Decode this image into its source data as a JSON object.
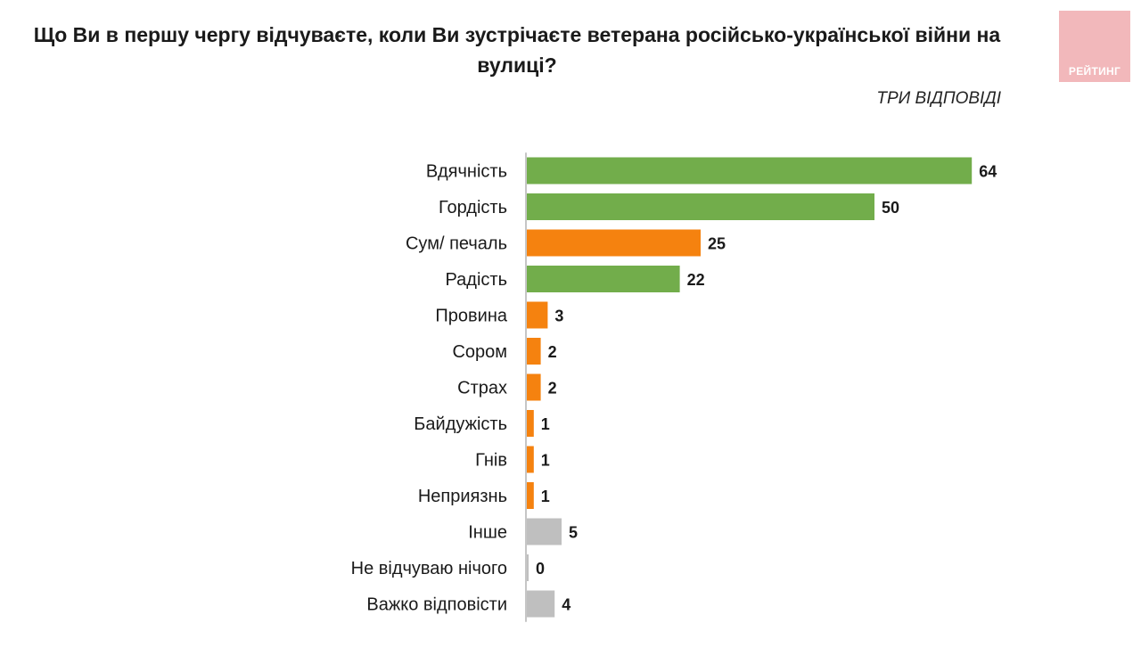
{
  "logo": {
    "text": "РЕЙТИНГ",
    "color": "#f2b8bb"
  },
  "chart_data": {
    "type": "bar",
    "orientation": "horizontal",
    "title": "Що Ви в першу чергу відчуваєте, коли Ви зустрічаєте ветерана російсько-української війни на вулиці?",
    "subtitle": "ТРИ ВІДПОВІДІ",
    "categories": [
      "Вдячність",
      "Гордість",
      "Сум/ печаль",
      "Радість",
      "Провина",
      "Сором",
      "Страх",
      "Байдужість",
      "Гнів",
      "Неприязнь",
      "Інше",
      "Не відчуваю нічого",
      "Важко відповісти"
    ],
    "values": [
      64,
      50,
      25,
      22,
      3,
      2,
      2,
      1,
      1,
      1,
      5,
      0,
      4
    ],
    "groups": [
      "positive",
      "positive",
      "negative",
      "positive",
      "negative",
      "negative",
      "negative",
      "negative",
      "negative",
      "negative",
      "other",
      "other",
      "other"
    ],
    "colors": {
      "positive": "#72ad4b",
      "negative": "#f5820f",
      "other": "#bfbfbf"
    },
    "xlim": [
      0,
      70
    ],
    "grid": false,
    "legend": "none"
  }
}
